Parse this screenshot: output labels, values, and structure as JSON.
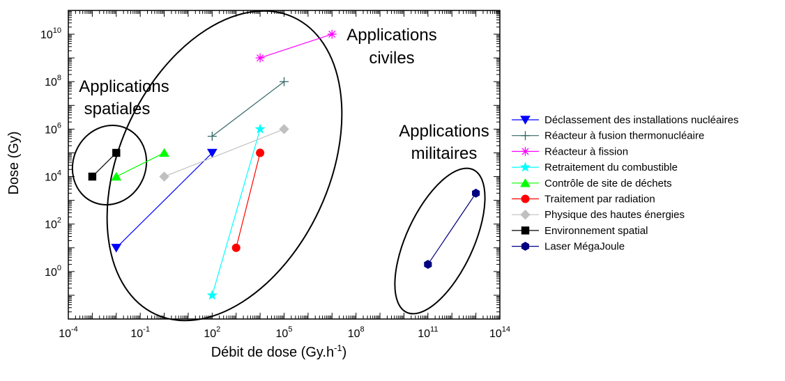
{
  "chart_data": {
    "type": "scatter",
    "xlabel": "Débit de dose (Gy.h",
    "xlabel_sup": "-1",
    "xlabel_end": ")",
    "ylabel": "Dose (Gy)",
    "xscale": "log",
    "yscale": "log",
    "xlim": [
      0.0001,
      100000000000000
    ],
    "ylim": [
      0.01,
      100000000000
    ],
    "x_ticks": [
      {
        "value": 0.0001,
        "base": "10",
        "exp": "-4"
      },
      {
        "value": 0.1,
        "base": "10",
        "exp": "-1"
      },
      {
        "value": 100,
        "base": "10",
        "exp": "2"
      },
      {
        "value": 100000,
        "base": "10",
        "exp": "5"
      },
      {
        "value": 100000000,
        "base": "10",
        "exp": "8"
      },
      {
        "value": 100000000000,
        "base": "10",
        "exp": "11"
      },
      {
        "value": 100000000000000,
        "base": "10",
        "exp": "14"
      }
    ],
    "y_ticks": [
      {
        "value": 1,
        "base": "10",
        "exp": "0"
      },
      {
        "value": 100,
        "base": "10",
        "exp": "2"
      },
      {
        "value": 10000,
        "base": "10",
        "exp": "4"
      },
      {
        "value": 1000000,
        "base": "10",
        "exp": "6"
      },
      {
        "value": 100000000,
        "base": "10",
        "exp": "8"
      },
      {
        "value": 10000000000,
        "base": "10",
        "exp": "10"
      }
    ],
    "grid": false,
    "legend_position": "right",
    "series": [
      {
        "name": "Déclassement des installations nucléaires",
        "color": "#0000ff",
        "marker": "triangle-down",
        "points": [
          [
            0.01,
            10
          ],
          [
            100,
            100000
          ]
        ]
      },
      {
        "name": "Réacteur à fusion thermonucléaire",
        "color": "#336666",
        "marker": "plus",
        "points": [
          [
            100,
            500000
          ],
          [
            100000,
            100000000
          ]
        ]
      },
      {
        "name": "Réacteur à fission",
        "color": "#ff00ff",
        "marker": "asterisk",
        "points": [
          [
            10000,
            1000000000
          ],
          [
            10000000,
            10000000000
          ]
        ]
      },
      {
        "name": "Retraitement du combustible",
        "color": "#00ffff",
        "marker": "star",
        "points": [
          [
            100,
            0.1
          ],
          [
            10000,
            1000000
          ]
        ]
      },
      {
        "name": "Contrôle de site de déchets",
        "color": "#00ff00",
        "marker": "triangle-up",
        "points": [
          [
            0.01,
            10000
          ],
          [
            1,
            100000
          ]
        ]
      },
      {
        "name": "Traitement par radiation",
        "color": "#ff0000",
        "marker": "circle",
        "points": [
          [
            1000,
            10
          ],
          [
            10000,
            100000
          ]
        ]
      },
      {
        "name": "Physique des hautes énergies",
        "color": "#c0c0c0",
        "marker": "diamond",
        "points": [
          [
            1,
            10000
          ],
          [
            100000,
            1000000
          ]
        ]
      },
      {
        "name": "Environnement spatial",
        "color": "#000000",
        "marker": "square",
        "points": [
          [
            0.001,
            10000
          ],
          [
            0.01,
            100000
          ]
        ]
      },
      {
        "name": "Laser MégaJoule",
        "color": "#000080",
        "marker": "hexagon",
        "points": [
          [
            100000000000,
            2
          ],
          [
            10000000000000,
            2000
          ]
        ]
      }
    ],
    "annotations": [
      {
        "id": "spatiales",
        "lines": [
          "Applications",
          "spatiales"
        ]
      },
      {
        "id": "civiles",
        "lines": [
          "Applications",
          "civiles"
        ]
      },
      {
        "id": "militaires",
        "lines": [
          "Applications",
          "militaires"
        ]
      }
    ]
  }
}
